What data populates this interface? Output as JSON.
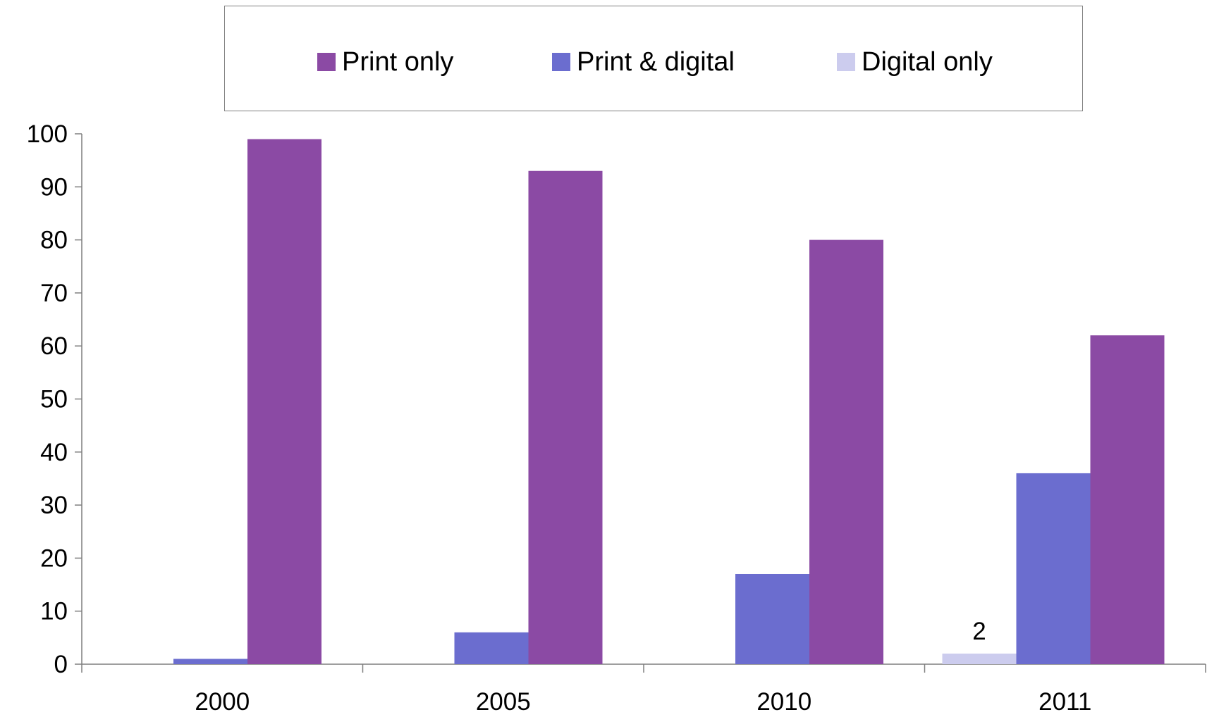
{
  "chart_data": {
    "type": "bar",
    "title": "",
    "xlabel": "",
    "ylabel": "",
    "categories": [
      "2000",
      "2005",
      "2010",
      "2011"
    ],
    "series": [
      {
        "name": "Digital only",
        "color": "#ccccee",
        "values": [
          0,
          0,
          0,
          2
        ]
      },
      {
        "name": "Print & digital",
        "color": "#6b6dcf",
        "values": [
          1,
          6,
          17,
          36
        ]
      },
      {
        "name": "Print only",
        "color": "#8b4aa4",
        "values": [
          99,
          93,
          80,
          62
        ]
      }
    ],
    "legend_order": [
      "Print only",
      "Print & digital",
      "Digital only"
    ],
    "data_labels": [
      {
        "series": "Digital only",
        "category": "2011",
        "text": "2"
      }
    ],
    "ylim": [
      0,
      100
    ],
    "yticks": [
      "0",
      "10",
      "20",
      "30",
      "40",
      "50",
      "60",
      "70",
      "80",
      "90",
      "100"
    ],
    "grid": false,
    "legend_position": "top"
  }
}
